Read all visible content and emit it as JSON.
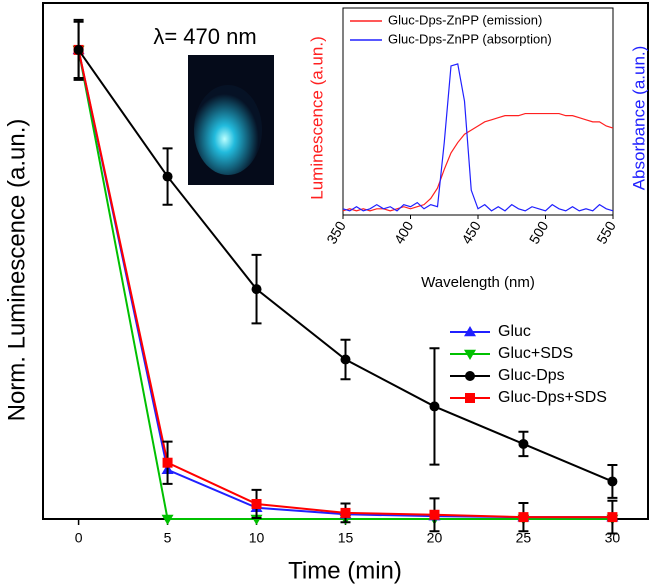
{
  "chart_data": [
    {
      "type": "line",
      "xlabel": "Time (min)",
      "ylabel": "Norm. Luminescence (a.un.)",
      "annotation": "λ= 470 nm",
      "x": [
        0,
        5,
        10,
        15,
        20,
        25,
        30
      ],
      "xlim": [
        -2,
        32
      ],
      "xticks": [
        0,
        5,
        10,
        15,
        20,
        25,
        30
      ],
      "ylim": [
        0,
        1.1
      ],
      "series": [
        {
          "name": "Gluc",
          "color": "#2020ff",
          "marker": "triangle-up",
          "values": [
            1,
            0.105,
            0.024,
            0.01,
            0.006,
            0.004,
            0.004
          ]
        },
        {
          "name": "Gluc+SDS",
          "color": "#00c000",
          "marker": "triangle-down",
          "values": [
            1,
            0,
            0,
            0,
            0,
            0,
            0
          ]
        },
        {
          "name": "Gluc-Dps",
          "color": "#000000",
          "marker": "circle",
          "values": [
            1,
            0.73,
            0.49,
            0.34,
            0.24,
            0.16,
            0.08
          ],
          "errors": [
            0.064,
            0.06,
            0.073,
            0.042,
            0.124,
            0.026,
            0.035
          ]
        },
        {
          "name": "Gluc-Dps+SDS",
          "color": "#ff0000",
          "marker": "square",
          "values": [
            1,
            0.12,
            0.032,
            0.013,
            0.009,
            0.004,
            0.004
          ],
          "errors": [
            0.06,
            0.045,
            0.03,
            0.02,
            0.035,
            0.03,
            0.035
          ]
        }
      ]
    },
    {
      "type": "line",
      "xlabel": "Wavelength (nm)",
      "ylabel": "Luminescence (a.un.)",
      "y2label": "Absorbance (a.un.)",
      "x": [
        350,
        355,
        360,
        365,
        370,
        375,
        380,
        385,
        390,
        395,
        400,
        405,
        410,
        415,
        420,
        425,
        430,
        435,
        440,
        445,
        450,
        455,
        460,
        465,
        470,
        475,
        480,
        485,
        490,
        495,
        500,
        505,
        510,
        515,
        520,
        525,
        530,
        535,
        540,
        545,
        550
      ],
      "xlim": [
        350,
        550
      ],
      "xticks": [
        350,
        400,
        450,
        500,
        550
      ],
      "ylim": [
        0,
        1
      ],
      "y2lim": [
        0,
        1
      ],
      "series": [
        {
          "name": "Gluc-Dps-ZnPP (emission)",
          "color": "#ff2020",
          "values": [
            0.02,
            0.03,
            0.02,
            0.03,
            0.02,
            0.03,
            0.03,
            0.02,
            0.03,
            0.04,
            0.03,
            0.04,
            0.05,
            0.08,
            0.13,
            0.22,
            0.3,
            0.35,
            0.39,
            0.41,
            0.43,
            0.45,
            0.46,
            0.47,
            0.48,
            0.48,
            0.48,
            0.49,
            0.49,
            0.49,
            0.49,
            0.49,
            0.49,
            0.48,
            0.48,
            0.47,
            0.46,
            0.45,
            0.45,
            0.43,
            0.42
          ]
        },
        {
          "name": "Gluc-Dps-ZnPP (absorption)",
          "color": "#2020ff",
          "axis": "y2",
          "values": [
            0.03,
            0.02,
            0.04,
            0.02,
            0.03,
            0.05,
            0.03,
            0.04,
            0.02,
            0.05,
            0.04,
            0.06,
            0.03,
            0.05,
            0.04,
            0.35,
            0.72,
            0.73,
            0.55,
            0.12,
            0.03,
            0.05,
            0.02,
            0.04,
            0.02,
            0.05,
            0.03,
            0.02,
            0.04,
            0.03,
            0.02,
            0.05,
            0.03,
            0.02,
            0.04,
            0.02,
            0.03,
            0.02,
            0.05,
            0.03,
            0.02
          ]
        }
      ]
    }
  ]
}
